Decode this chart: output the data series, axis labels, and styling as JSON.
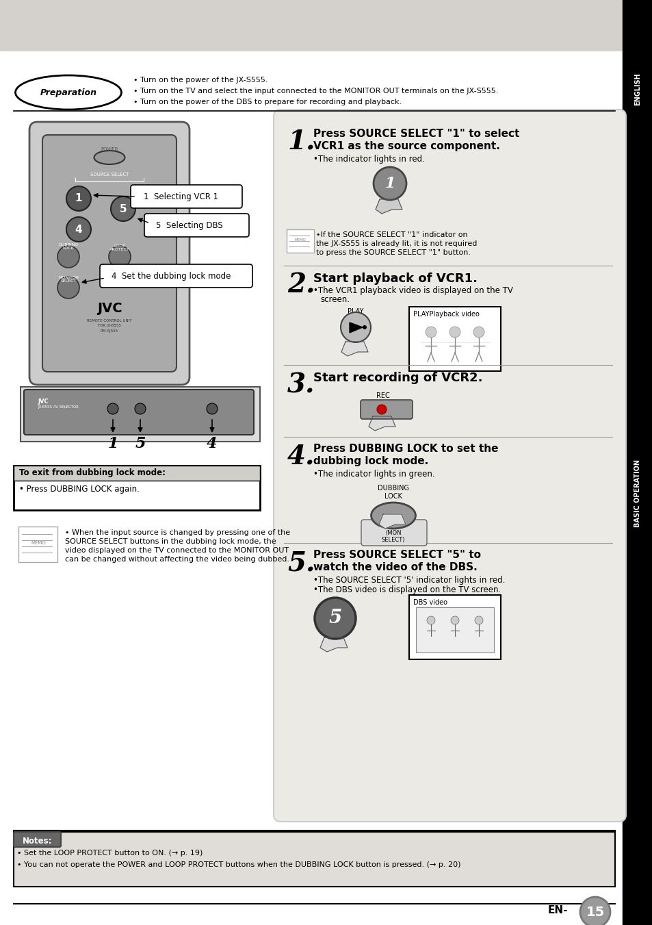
{
  "bg_color": "#d4d0cb",
  "white": "#ffffff",
  "black": "#000000",
  "light_gray": "#e8e6e0",
  "mid_gray": "#c8c5be",
  "dark_gray": "#555555",
  "page_bg": "#f5f4f0",
  "prep_text_lines": [
    "• Turn on the power of the JX-S555.",
    "• Turn on the TV and select the input connected to the MONITOR OUT terminals on the JX-S555.",
    "• Turn on the power of the DBS to prepare for recording and playback."
  ],
  "notes_text": [
    "• Set the LOOP PROTECT button to ON. (→ p. 19)",
    "• You can not operate the POWER and LOOP PROTECT buttons when the DUBBING LOCK button is pressed. (→ p. 20)"
  ],
  "exit_title": "To exit from dubbing lock mode:",
  "exit_text": "• Press DUBBING LOCK again.",
  "memo_text_lines": [
    "• When the input source is changed by pressing one of the",
    "SOURCE SELECT buttons in the dubbing lock mode, the",
    "video displayed on the TV connected to the MONITOR OUT",
    "can be changed without affecting the video being dubbed."
  ],
  "page_num": "15"
}
